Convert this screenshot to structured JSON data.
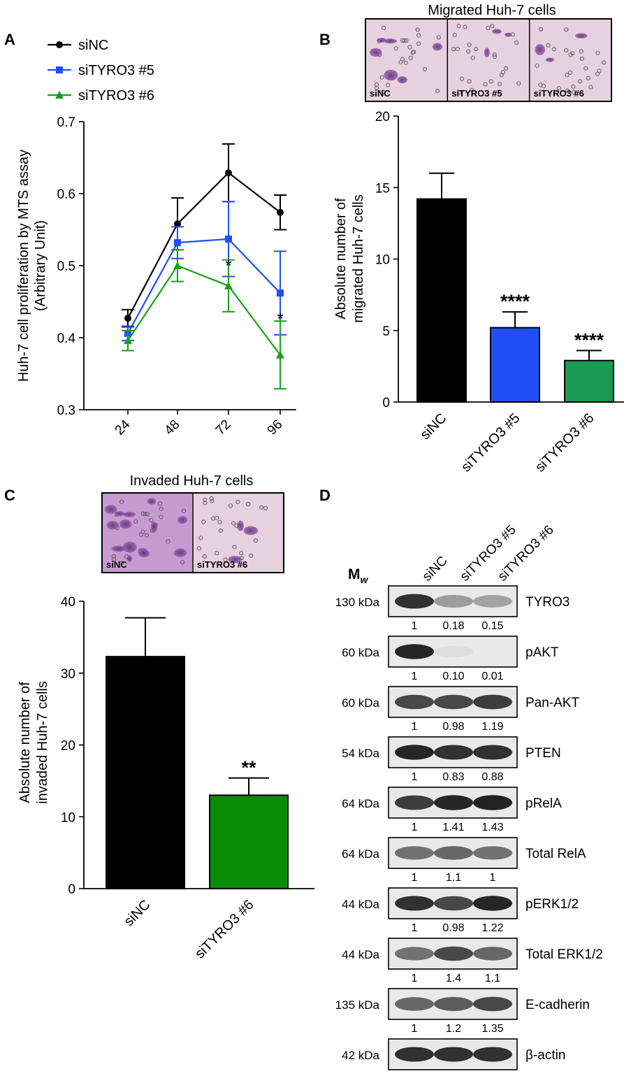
{
  "panels": {
    "a": "A",
    "b": "B",
    "c": "C",
    "d": "D"
  },
  "micrographs": {
    "migrated_title": "Migrated Huh-7 cells",
    "invaded_title": "Invaded Huh-7 cells",
    "migrated_labels": [
      "siNC",
      "siTYRO3 #5",
      "siTYRO3 #6"
    ],
    "invaded_labels": [
      "siNC",
      "siTYRO3 #6"
    ]
  },
  "chart_data": [
    {
      "type": "line",
      "panel": "A",
      "xlabel": "",
      "ylabel": "Huh-7 cell proliferation by MTS assay",
      "ylabel2": "(Arbitrary Unit)",
      "x": [
        24,
        48,
        72,
        96
      ],
      "ylim": [
        0.3,
        0.7
      ],
      "yticks": [
        "0.3",
        "0.4",
        "0.5",
        "0.6",
        "0.7"
      ],
      "legend_position": "top-left",
      "series": [
        {
          "name": "siNC",
          "color": "#000000",
          "marker": "circle",
          "values": [
            0.427,
            0.558,
            0.629,
            0.574
          ],
          "errors": [
            0.012,
            0.036,
            0.04,
            0.024
          ]
        },
        {
          "name": "siTYRO3 #5",
          "color": "#1f4ff5",
          "marker": "square",
          "values": [
            0.406,
            0.532,
            0.537,
            0.462
          ],
          "errors": [
            0.01,
            0.022,
            0.052,
            0.058
          ]
        },
        {
          "name": "siTYRO3 #6",
          "color": "#18a018",
          "marker": "triangle",
          "values": [
            0.396,
            0.5,
            0.472,
            0.376
          ],
          "errors": [
            0.014,
            0.022,
            0.036,
            0.047
          ]
        }
      ],
      "annotations": [
        {
          "x": 72,
          "text": "*"
        },
        {
          "x": 96,
          "text": "*"
        }
      ]
    },
    {
      "type": "bar",
      "panel": "B",
      "ylabel": "Absolute number of",
      "ylabel2": "migrated Huh-7 cells",
      "categories": [
        "siNC",
        "siTYRO3 #5",
        "siTYRO3 #6"
      ],
      "values": [
        14.2,
        5.2,
        2.9
      ],
      "errors": [
        1.8,
        1.1,
        0.7
      ],
      "colors": [
        "#000000",
        "#1f4ff5",
        "#1a9a55"
      ],
      "significance": [
        "",
        "****",
        "****"
      ],
      "ylim": [
        0,
        20
      ],
      "yticks": [
        "0",
        "5",
        "10",
        "15",
        "20"
      ]
    },
    {
      "type": "bar",
      "panel": "C",
      "ylabel": "Absolute number of",
      "ylabel2": "invaded Huh-7 cells",
      "categories": [
        "siNC",
        "siTYRO3 #6"
      ],
      "values": [
        32.3,
        13.0
      ],
      "errors": [
        5.4,
        2.4
      ],
      "colors": [
        "#000000",
        "#0a8c0a"
      ],
      "significance": [
        "",
        "**"
      ],
      "ylim": [
        0,
        40
      ],
      "yticks": [
        "0",
        "10",
        "20",
        "30",
        "40"
      ]
    }
  ],
  "western": {
    "mw_header": "M",
    "mw_sub": "w",
    "columns": [
      "siNC",
      "siTYRO3 #5",
      "siTYRO3 #6"
    ],
    "rows": [
      {
        "mw": "130 kDa",
        "protein": "TYRO3",
        "quant": [
          "1",
          "0.18",
          "0.15"
        ],
        "intensity": [
          0.85,
          0.35,
          0.32
        ]
      },
      {
        "mw": "60 kDa",
        "protein": "pAKT",
        "quant": [
          "1",
          "0.10",
          "0.01"
        ],
        "intensity": [
          0.9,
          0.05,
          0.02
        ]
      },
      {
        "mw": "60 kDa",
        "protein": "Pan-AKT",
        "quant": [
          "1",
          "0.98",
          "1.19"
        ],
        "intensity": [
          0.75,
          0.75,
          0.8
        ]
      },
      {
        "mw": "54 kDa",
        "protein": "PTEN",
        "quant": [
          "1",
          "0.83",
          "0.88"
        ],
        "intensity": [
          0.9,
          0.85,
          0.85
        ]
      },
      {
        "mw": "64 kDa",
        "protein": "pRelA",
        "quant": [
          "1",
          "1.41",
          "1.43"
        ],
        "intensity": [
          0.8,
          0.9,
          0.92
        ]
      },
      {
        "mw": "64 kDa",
        "protein": "Total RelA",
        "quant": [
          "1",
          "1.1",
          "1"
        ],
        "intensity": [
          0.55,
          0.6,
          0.55
        ]
      },
      {
        "mw": "44 kDa",
        "protein": "pERK1/2",
        "quant": [
          "1",
          "0.98",
          "1.22"
        ],
        "intensity": [
          0.85,
          0.75,
          0.9
        ]
      },
      {
        "mw": "44 kDa",
        "protein": "Total ERK1/2",
        "quant": [
          "1",
          "1.4",
          "1.1"
        ],
        "intensity": [
          0.55,
          0.75,
          0.6
        ]
      },
      {
        "mw": "135 kDa",
        "protein": "E-cadherin",
        "quant": [
          "1",
          "1.2",
          "1.35"
        ],
        "intensity": [
          0.6,
          0.65,
          0.75
        ]
      },
      {
        "mw": "42 kDa",
        "protein": "β-actin",
        "quant": [],
        "intensity": [
          0.85,
          0.85,
          0.85
        ]
      }
    ]
  }
}
